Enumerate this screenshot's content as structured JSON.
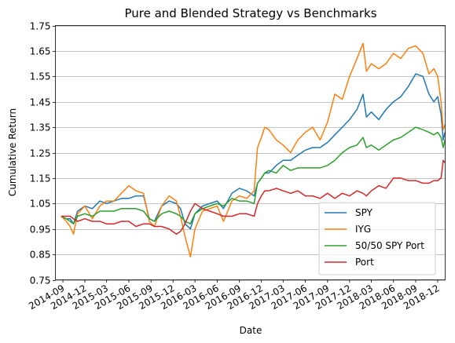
{
  "chart_data": {
    "type": "line",
    "title": "Pure and Blended Strategy vs Benchmarks",
    "xlabel": "Date",
    "ylabel": "Cumulative Return",
    "ylim": [
      0.75,
      1.75
    ],
    "xlim": [
      "2014-08",
      "2019-01"
    ],
    "yticks": [
      "0.75",
      "0.85",
      "0.95",
      "1.05",
      "1.15",
      "1.25",
      "1.35",
      "1.45",
      "1.55",
      "1.65",
      "1.75"
    ],
    "xticks": [
      "2014-09",
      "2014-12",
      "2015-03",
      "2015-06",
      "2015-09",
      "2015-12",
      "2016-03",
      "2016-06",
      "2016-09",
      "2016-12",
      "2017-03",
      "2017-06",
      "2017-09",
      "2017-12",
      "2018-03",
      "2018-06",
      "2018-09",
      "2018-12"
    ],
    "grid": "horizontal",
    "legend_position": "lower-right",
    "x": [
      "2014-08-25",
      "2014-09-15",
      "2014-10-01",
      "2014-10-15",
      "2014-11-01",
      "2014-12-01",
      "2015-01-01",
      "2015-02-01",
      "2015-03-01",
      "2015-04-01",
      "2015-05-01",
      "2015-06-01",
      "2015-07-01",
      "2015-08-01",
      "2015-08-25",
      "2015-09-15",
      "2015-10-15",
      "2015-11-15",
      "2015-12-15",
      "2016-01-01",
      "2016-01-20",
      "2016-02-11",
      "2016-03-01",
      "2016-04-01",
      "2016-05-01",
      "2016-06-01",
      "2016-06-27",
      "2016-08-01",
      "2016-09-01",
      "2016-10-01",
      "2016-11-01",
      "2016-11-15",
      "2016-12-01",
      "2016-12-15",
      "2017-01-01",
      "2017-02-01",
      "2017-03-01",
      "2017-04-01",
      "2017-05-01",
      "2017-06-01",
      "2017-07-01",
      "2017-08-01",
      "2017-09-01",
      "2017-10-01",
      "2017-11-01",
      "2017-12-01",
      "2018-01-01",
      "2018-01-26",
      "2018-02-09",
      "2018-03-01",
      "2018-04-01",
      "2018-05-01",
      "2018-06-01",
      "2018-07-01",
      "2018-08-01",
      "2018-09-01",
      "2018-10-01",
      "2018-10-26",
      "2018-11-15",
      "2018-12-01",
      "2018-12-15",
      "2018-12-24",
      "2018-12-31"
    ],
    "series": [
      {
        "name": "SPY",
        "color": "#1f77b4",
        "values": [
          1.0,
          0.99,
          0.99,
          0.97,
          1.02,
          1.04,
          1.03,
          1.06,
          1.05,
          1.06,
          1.07,
          1.07,
          1.08,
          1.08,
          0.99,
          0.98,
          1.04,
          1.06,
          1.05,
          1.03,
          0.97,
          0.95,
          1.01,
          1.04,
          1.05,
          1.06,
          1.03,
          1.09,
          1.11,
          1.1,
          1.08,
          1.13,
          1.15,
          1.17,
          1.17,
          1.2,
          1.22,
          1.22,
          1.24,
          1.26,
          1.27,
          1.27,
          1.29,
          1.32,
          1.35,
          1.38,
          1.42,
          1.48,
          1.39,
          1.41,
          1.38,
          1.42,
          1.45,
          1.47,
          1.51,
          1.56,
          1.55,
          1.48,
          1.45,
          1.47,
          1.4,
          1.3,
          1.33
        ]
      },
      {
        "name": "IYG",
        "color": "#ff7f0e",
        "values": [
          1.0,
          0.98,
          0.96,
          0.93,
          1.01,
          1.04,
          0.99,
          1.04,
          1.06,
          1.06,
          1.09,
          1.12,
          1.1,
          1.09,
          0.98,
          0.96,
          1.04,
          1.08,
          1.06,
          1.0,
          0.92,
          0.84,
          0.95,
          1.02,
          1.03,
          1.04,
          0.98,
          1.06,
          1.08,
          1.07,
          1.1,
          1.27,
          1.31,
          1.35,
          1.34,
          1.3,
          1.28,
          1.25,
          1.3,
          1.33,
          1.35,
          1.3,
          1.37,
          1.48,
          1.46,
          1.55,
          1.62,
          1.68,
          1.57,
          1.6,
          1.58,
          1.6,
          1.64,
          1.62,
          1.66,
          1.67,
          1.64,
          1.56,
          1.58,
          1.55,
          1.45,
          1.34,
          1.36
        ]
      },
      {
        "name": "50/50 SPY Port",
        "color": "#2ca02c",
        "values": [
          1.0,
          0.99,
          0.98,
          0.97,
          1.0,
          1.01,
          1.0,
          1.02,
          1.02,
          1.02,
          1.03,
          1.03,
          1.03,
          1.02,
          0.99,
          0.98,
          1.01,
          1.02,
          1.01,
          1.0,
          0.98,
          0.97,
          1.01,
          1.03,
          1.04,
          1.05,
          1.04,
          1.07,
          1.06,
          1.06,
          1.05,
          1.13,
          1.15,
          1.17,
          1.18,
          1.17,
          1.2,
          1.18,
          1.19,
          1.19,
          1.19,
          1.19,
          1.2,
          1.22,
          1.25,
          1.27,
          1.28,
          1.31,
          1.27,
          1.28,
          1.26,
          1.28,
          1.3,
          1.31,
          1.33,
          1.35,
          1.34,
          1.33,
          1.32,
          1.33,
          1.31,
          1.27,
          1.3
        ]
      },
      {
        "name": "Port",
        "color": "#d62728",
        "values": [
          1.0,
          1.0,
          1.0,
          0.99,
          0.98,
          0.99,
          0.98,
          0.98,
          0.97,
          0.97,
          0.98,
          0.98,
          0.96,
          0.97,
          0.97,
          0.96,
          0.96,
          0.95,
          0.93,
          0.94,
          0.97,
          1.02,
          1.05,
          1.03,
          1.02,
          1.01,
          1.0,
          1.0,
          1.01,
          1.01,
          1.0,
          1.05,
          1.08,
          1.1,
          1.1,
          1.11,
          1.1,
          1.09,
          1.1,
          1.08,
          1.08,
          1.07,
          1.09,
          1.07,
          1.09,
          1.08,
          1.1,
          1.09,
          1.08,
          1.1,
          1.12,
          1.11,
          1.15,
          1.15,
          1.14,
          1.14,
          1.13,
          1.13,
          1.14,
          1.14,
          1.15,
          1.22,
          1.21
        ]
      }
    ]
  }
}
